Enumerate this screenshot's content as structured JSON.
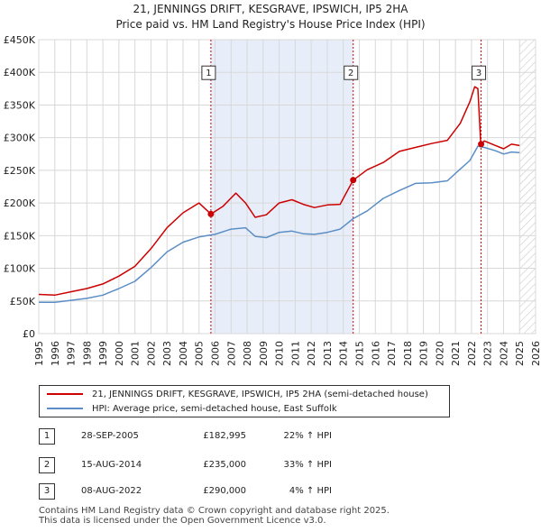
{
  "header": {
    "title": "21, JENNINGS DRIFT, KESGRAVE, IPSWICH, IP5 2HA",
    "subtitle": "Price paid vs. HM Land Registry's House Price Index (HPI)"
  },
  "chart_data": {
    "type": "line",
    "xlim": [
      1995,
      2026
    ],
    "ylim": [
      0,
      450000
    ],
    "x_ticks": [
      "1995",
      "1996",
      "1997",
      "1998",
      "1999",
      "2000",
      "2001",
      "2002",
      "2003",
      "2004",
      "2005",
      "2006",
      "2007",
      "2008",
      "2009",
      "2010",
      "2011",
      "2012",
      "2013",
      "2014",
      "2015",
      "2016",
      "2017",
      "2018",
      "2019",
      "2020",
      "2021",
      "2022",
      "2023",
      "2024",
      "2025",
      "2026"
    ],
    "y_ticks": [
      {
        "value": 0,
        "label": "£0"
      },
      {
        "value": 50000,
        "label": "£50K"
      },
      {
        "value": 100000,
        "label": "£100K"
      },
      {
        "value": 150000,
        "label": "£150K"
      },
      {
        "value": 200000,
        "label": "£200K"
      },
      {
        "value": 250000,
        "label": "£250K"
      },
      {
        "value": 300000,
        "label": "£300K"
      },
      {
        "value": 350000,
        "label": "£350K"
      },
      {
        "value": 400000,
        "label": "£400K"
      },
      {
        "value": 450000,
        "label": "£450K"
      }
    ],
    "grid": true,
    "shaded_span": [
      2005.74,
      2014.62
    ],
    "future_hatch_from": 2025.0,
    "series": [
      {
        "name": "21, JENNINGS DRIFT, KESGRAVE, IPSWICH, IP5 2HA (semi-detached house)",
        "color": "#cc0000",
        "x": [
          1995.0,
          1996.0,
          1997.0,
          1998.0,
          1999.0,
          2000.0,
          2001.0,
          2002.0,
          2003.0,
          2004.0,
          2005.0,
          2005.74,
          2006.5,
          2007.3,
          2007.9,
          2008.5,
          2009.2,
          2010.0,
          2010.8,
          2011.5,
          2012.2,
          2013.0,
          2013.8,
          2014.62,
          2015.5,
          2016.5,
          2017.5,
          2018.5,
          2019.5,
          2020.5,
          2021.3,
          2021.9,
          2022.2,
          2022.4,
          2022.58,
          2022.8,
          2023.5,
          2024.0,
          2024.5,
          2025.0
        ],
        "y": [
          60000,
          59000,
          64000,
          69000,
          76000,
          88000,
          103000,
          130000,
          162000,
          185000,
          200000,
          182995,
          195000,
          215000,
          200000,
          178000,
          182000,
          200000,
          205000,
          198000,
          193000,
          197000,
          198000,
          235000,
          251000,
          262000,
          279000,
          285000,
          291000,
          296000,
          322000,
          355000,
          378000,
          375000,
          290000,
          295000,
          288000,
          283000,
          290000,
          288000
        ]
      },
      {
        "name": "HPI: Average price, semi-detached house, East Suffolk",
        "color": "#5b8ec6",
        "x": [
          1995.0,
          1996.0,
          1997.0,
          1998.0,
          1999.0,
          2000.0,
          2001.0,
          2002.0,
          2003.0,
          2004.0,
          2005.0,
          2006.0,
          2007.0,
          2007.9,
          2008.5,
          2009.2,
          2010.0,
          2010.8,
          2011.5,
          2012.2,
          2013.0,
          2013.8,
          2014.62,
          2015.5,
          2016.5,
          2017.5,
          2018.5,
          2019.5,
          2020.5,
          2021.3,
          2021.9,
          2022.4,
          2022.8,
          2023.5,
          2024.0,
          2024.5,
          2025.0
        ],
        "y": [
          48000,
          48000,
          51000,
          54000,
          59000,
          69000,
          80000,
          101000,
          125000,
          140000,
          148000,
          152000,
          160000,
          162000,
          149000,
          147000,
          155000,
          157000,
          153000,
          152000,
          155000,
          160000,
          176000,
          188000,
          207000,
          219000,
          230000,
          231000,
          234000,
          252000,
          265000,
          287000,
          285000,
          280000,
          275000,
          278000,
          277000
        ]
      }
    ],
    "transactions": [
      {
        "id": "1",
        "x": 2005.74,
        "date": "28-SEP-2005",
        "price": "£182,995",
        "value": 182995,
        "hpi": "22% ↑ HPI"
      },
      {
        "id": "2",
        "x": 2014.62,
        "date": "15-AUG-2014",
        "price": "£235,000",
        "value": 235000,
        "hpi": "33% ↑ HPI"
      },
      {
        "id": "3",
        "x": 2022.6,
        "date": "08-AUG-2022",
        "price": "£290,000",
        "value": 290000,
        "hpi": "4% ↑ HPI"
      }
    ],
    "marker_label_values": [
      400000,
      400000,
      400000
    ]
  },
  "footer": {
    "line1": "Contains HM Land Registry data © Crown copyright and database right 2025.",
    "line2": "This data is licensed under the Open Government Licence v3.0."
  }
}
